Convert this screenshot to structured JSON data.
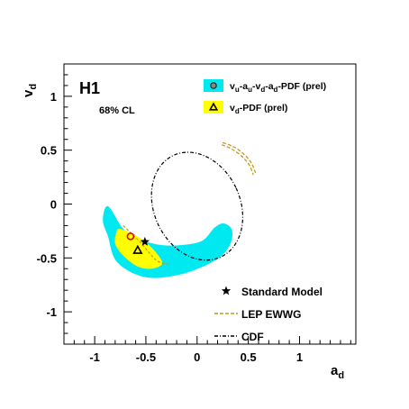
{
  "chart_data": {
    "type": "contour",
    "xlabel": "a_d",
    "ylabel": "v_d",
    "xlim": [
      -1.3,
      1.55
    ],
    "ylim": [
      -1.3,
      1.3
    ],
    "xticks": [
      -1,
      -0.5,
      0,
      0.5,
      1
    ],
    "xtick_labels": [
      "-1",
      "-0.5",
      "0",
      "0.5",
      "1"
    ],
    "yticks": [
      -1,
      -0.5,
      0,
      0.5,
      1
    ],
    "ytick_labels": [
      "-1",
      "-0.5",
      "0",
      "0.5",
      "1"
    ],
    "grid": false,
    "tag": "H1",
    "cl_text": "68% CL",
    "legend_top": {
      "placement": "top-right",
      "entries": [
        {
          "main": "v",
          "sub": "u",
          "rest": [
            "-a",
            "u",
            "-v",
            "d",
            "-a",
            "d",
            "-PDF (prel)"
          ],
          "color": "#00e8f0",
          "marker": "circle"
        },
        {
          "main": "v",
          "sub": "d",
          "rest": [
            "-PDF (prel)"
          ],
          "color": "#ffff00",
          "marker": "triangle"
        }
      ]
    },
    "legend_bottom": {
      "placement": "bottom-right",
      "entries": [
        {
          "label": "Standard Model",
          "style": "star"
        },
        {
          "label": "LEP EWWG",
          "style": "dashed",
          "color": "#c49a1c"
        },
        {
          "label": "CDF",
          "style": "dashdot",
          "color": "#000000"
        }
      ]
    },
    "regions": [
      {
        "name": "cyan",
        "color": "#00e8f0",
        "outline": [
          [
            -0.87,
            -0.02
          ],
          [
            -0.72,
            -0.23
          ],
          [
            -0.55,
            -0.33
          ],
          [
            -0.35,
            -0.38
          ],
          [
            -0.15,
            -0.38
          ],
          [
            0.05,
            -0.34
          ],
          [
            0.17,
            -0.22
          ],
          [
            0.26,
            -0.18
          ],
          [
            0.34,
            -0.24
          ],
          [
            0.32,
            -0.38
          ],
          [
            0.18,
            -0.52
          ],
          [
            -0.15,
            -0.65
          ],
          [
            -0.5,
            -0.68
          ],
          [
            -0.78,
            -0.54
          ],
          [
            -0.87,
            -0.3
          ],
          [
            -0.92,
            -0.15
          ]
        ]
      },
      {
        "name": "yellow",
        "color": "#ffff00",
        "outline": [
          [
            -0.76,
            -0.23
          ],
          [
            -0.64,
            -0.27
          ],
          [
            -0.52,
            -0.34
          ],
          [
            -0.41,
            -0.44
          ],
          [
            -0.34,
            -0.55
          ],
          [
            -0.44,
            -0.6
          ],
          [
            -0.58,
            -0.58
          ],
          [
            -0.72,
            -0.48
          ],
          [
            -0.8,
            -0.37
          ],
          [
            -0.79,
            -0.27
          ]
        ]
      }
    ],
    "points": [
      {
        "name": "circle",
        "x": -0.65,
        "y": -0.3,
        "color": "#e00000"
      },
      {
        "name": "triangle",
        "x": -0.58,
        "y": -0.43,
        "color": "#000000"
      },
      {
        "name": "standard-model",
        "x": -0.51,
        "y": -0.35,
        "color": "#000000"
      }
    ],
    "lep_contours": [
      {
        "points": [
          [
            0.25,
            0.57
          ],
          [
            0.36,
            0.53
          ],
          [
            0.46,
            0.46
          ],
          [
            0.53,
            0.38
          ],
          [
            0.57,
            0.29
          ]
        ]
      },
      {
        "points": [
          [
            0.24,
            0.55
          ],
          [
            0.34,
            0.51
          ],
          [
            0.44,
            0.44
          ],
          [
            0.51,
            0.36
          ],
          [
            0.55,
            0.27
          ]
        ]
      }
    ],
    "cdf_ellipse": {
      "cx": 0.0,
      "cy": -0.02,
      "rx": 0.42,
      "ry": 0.52,
      "rotation_deg": -25
    },
    "lep_inner": {
      "points": [
        [
          -0.72,
          -0.2
        ],
        [
          -0.55,
          -0.36
        ],
        [
          -0.4,
          -0.52
        ],
        [
          -0.28,
          -0.56
        ]
      ]
    }
  }
}
